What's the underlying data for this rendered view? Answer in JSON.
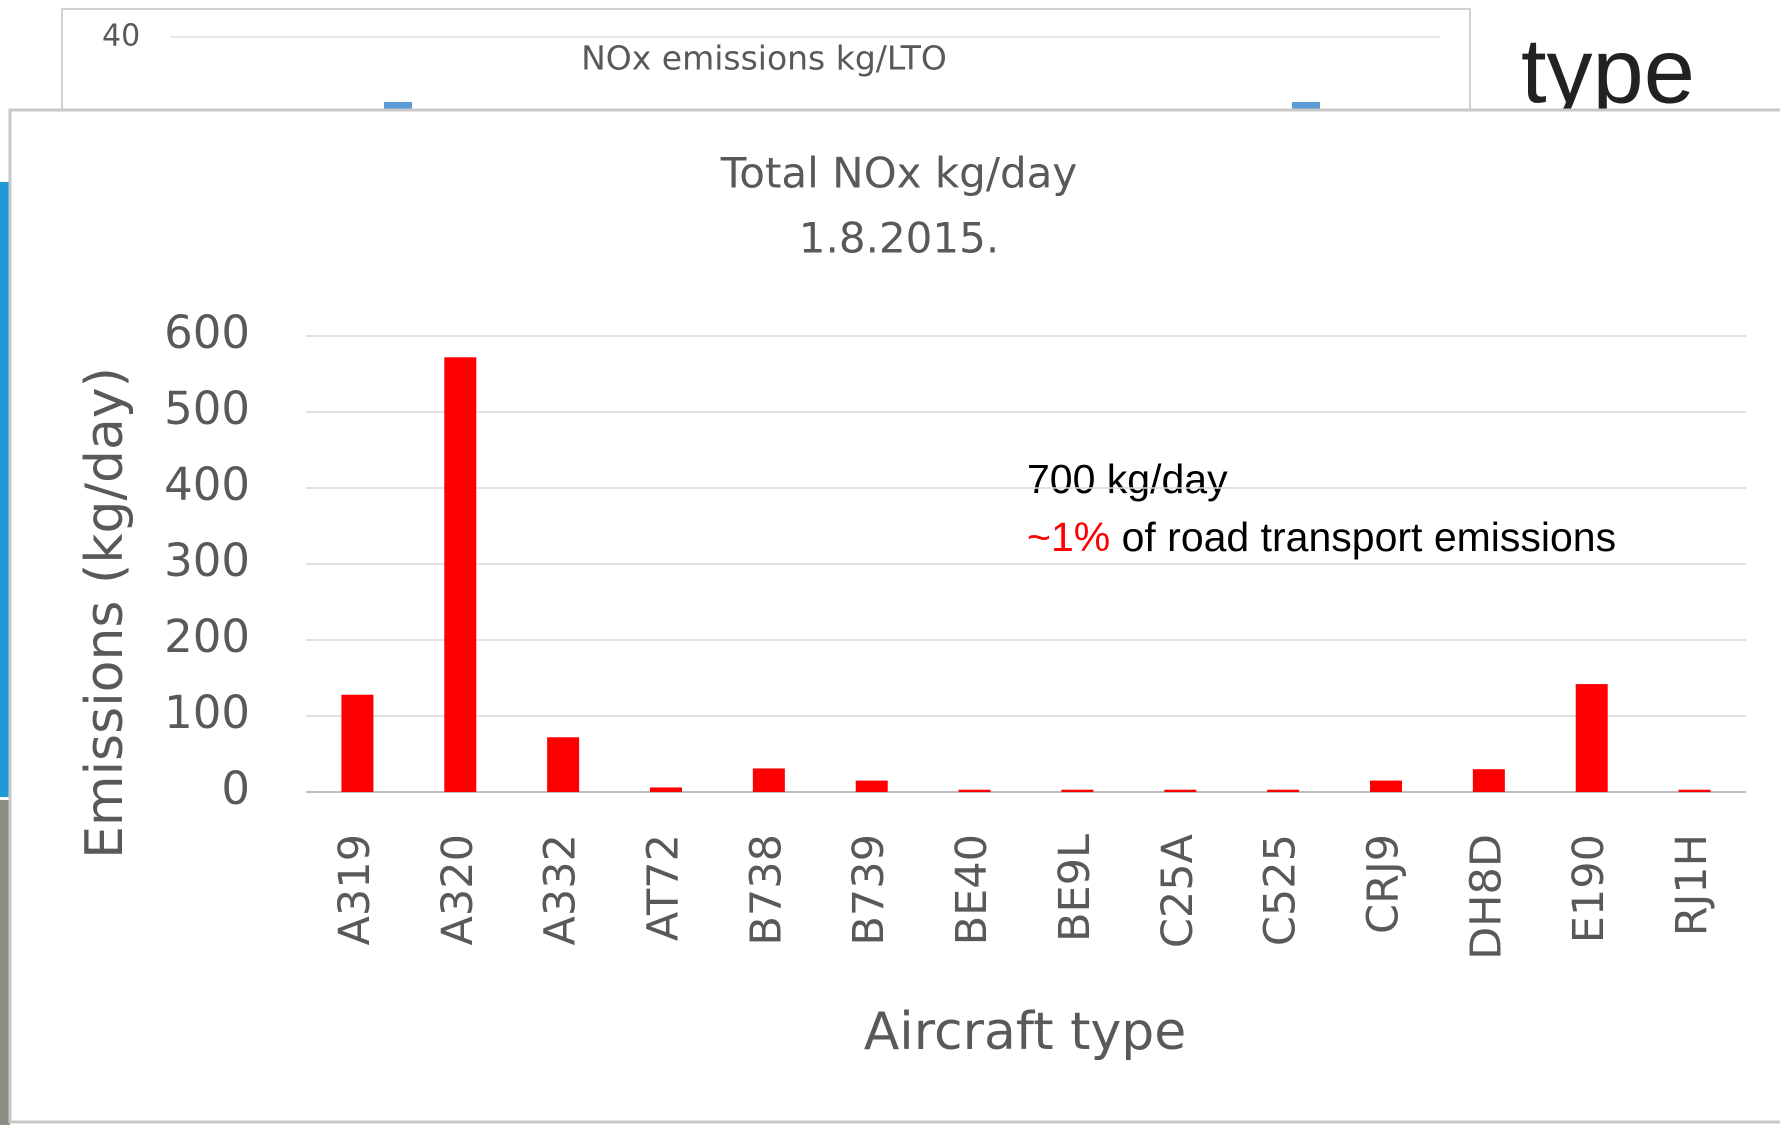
{
  "background": {
    "slide_title": "type",
    "chart_title": "NOx emissions kg/LTO",
    "chart_tick": "40"
  },
  "chart_data": {
    "type": "bar",
    "title": "Total NOx kg/day",
    "subtitle": "1.8.2015.",
    "x_label": "Aircraft type",
    "y_label": "Emissions (kg/day)",
    "categories": [
      "A319",
      "A320",
      "A332",
      "AT72",
      "B738",
      "B739",
      "BE40",
      "BE9L",
      "C25A",
      "C525",
      "CRJ9",
      "DH8D",
      "E190",
      "RJ1H"
    ],
    "values": [
      128,
      572,
      72,
      6,
      31,
      15,
      3,
      3,
      3,
      3,
      15,
      30,
      142,
      3
    ],
    "color": "#ff0000",
    "ylim": [
      0,
      600
    ],
    "yticks": [
      0,
      100,
      200,
      300,
      400,
      500,
      600
    ],
    "grid": true,
    "annotation": {
      "line1": "700 kg/day",
      "highlight": "~1%",
      "rest": " of road transport emissions"
    }
  }
}
